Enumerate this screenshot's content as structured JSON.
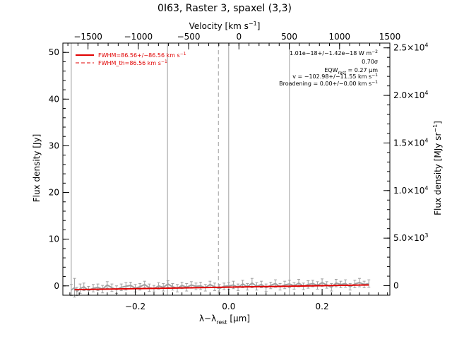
{
  "chart_data": {
    "type": "line",
    "title": "0I63, Raster 3, spaxel (3,3)",
    "xlabel": "λ−λ",
    "xlabel_sub": "rest",
    "xlabel_unit": " [μm]",
    "ylabel": "Flux density [Jy]",
    "top_xlabel_prefix": "Velocity [km s",
    "top_xlabel_sup": "−1",
    "top_xlabel_suffix": "]",
    "right_ylabel_prefix": "Flux density [MJy sr",
    "right_ylabel_sup": "−1",
    "right_ylabel_suffix": "]",
    "xlim": [
      -0.355,
      0.345
    ],
    "ylim": [
      -2,
      52
    ],
    "top_xlim": [
      -1750,
      1500
    ],
    "right_ylim": [
      -1000,
      25500
    ],
    "xticks": [
      {
        "value": -0.2,
        "label": "−0.2"
      },
      {
        "value": 0.0,
        "label": "0.0"
      },
      {
        "value": 0.2,
        "label": "0.2"
      }
    ],
    "yticks": [
      {
        "value": 0,
        "label": "0"
      },
      {
        "value": 10,
        "label": "10"
      },
      {
        "value": 20,
        "label": "20"
      },
      {
        "value": 30,
        "label": "30"
      },
      {
        "value": 40,
        "label": "40"
      },
      {
        "value": 50,
        "label": "50"
      }
    ],
    "top_xticks": [
      {
        "value": -1500,
        "label": "−1500"
      },
      {
        "value": -1000,
        "label": "−1000"
      },
      {
        "value": -500,
        "label": "−500"
      },
      {
        "value": 0,
        "label": "0"
      },
      {
        "value": 500,
        "label": "500"
      },
      {
        "value": 1000,
        "label": "1000"
      },
      {
        "value": 1500,
        "label": "1500"
      }
    ],
    "right_yticks": [
      {
        "value": 0,
        "mant": "0",
        "exp": ""
      },
      {
        "value": 5000,
        "mant": "5.0×10",
        "exp": "3"
      },
      {
        "value": 10000,
        "mant": "1.0×10",
        "exp": "4"
      },
      {
        "value": 15000,
        "mant": "1.5×10",
        "exp": "4"
      },
      {
        "value": 20000,
        "mant": "2.0×10",
        "exp": "4"
      },
      {
        "value": 25000,
        "mant": "2.5×10",
        "exp": "4"
      }
    ],
    "vertical_lines": [
      {
        "x": -0.337,
        "style": "solid"
      },
      {
        "x": -0.131,
        "style": "solid"
      },
      {
        "x": -0.022,
        "style": "dashed"
      },
      {
        "x": 0.0,
        "style": "solid"
      },
      {
        "x": 0.13,
        "style": "solid"
      }
    ],
    "series": [
      {
        "role": "data",
        "color": "#a0a0a0",
        "x": [
          -0.337,
          -0.33,
          -0.325,
          -0.318,
          -0.31,
          -0.3,
          -0.29,
          -0.28,
          -0.27,
          -0.26,
          -0.25,
          -0.24,
          -0.23,
          -0.22,
          -0.21,
          -0.2,
          -0.19,
          -0.18,
          -0.17,
          -0.16,
          -0.15,
          -0.14,
          -0.13,
          -0.12,
          -0.11,
          -0.1,
          -0.09,
          -0.08,
          -0.07,
          -0.06,
          -0.05,
          -0.04,
          -0.03,
          -0.02,
          -0.01,
          0.0,
          0.01,
          0.02,
          0.03,
          0.04,
          0.05,
          0.06,
          0.07,
          0.08,
          0.09,
          0.1,
          0.11,
          0.12,
          0.13,
          0.14,
          0.15,
          0.16,
          0.17,
          0.18,
          0.19,
          0.2,
          0.21,
          0.22,
          0.23,
          0.24,
          0.25,
          0.26,
          0.27,
          0.28,
          0.29,
          0.3
        ],
        "y": [
          -0.9,
          -0.4,
          -1.2,
          -0.6,
          -0.2,
          -1.0,
          -0.5,
          -0.3,
          -0.7,
          0.2,
          -0.4,
          -0.8,
          -0.3,
          -0.1,
          0.1,
          -0.5,
          -0.2,
          0.3,
          -0.4,
          -0.6,
          0.0,
          -0.3,
          0.4,
          -0.2,
          -0.5,
          0.1,
          -0.3,
          0.2,
          -0.1,
          0.0,
          -0.4,
          0.3,
          -0.2,
          -0.6,
          -0.1,
          0.0,
          0.2,
          -0.3,
          0.4,
          -0.2,
          0.6,
          -0.1,
          0.3,
          -0.4,
          0.1,
          0.5,
          -0.2,
          0.2,
          0.4,
          0.0,
          0.6,
          -0.1,
          0.3,
          0.5,
          0.1,
          0.7,
          0.2,
          -0.3,
          0.6,
          0.3,
          0.5,
          -0.2,
          0.4,
          0.7,
          0.3,
          0.5
        ],
        "err": [
          1.2,
          2.0,
          0.9,
          1.0,
          0.8,
          0.9,
          0.8,
          0.7,
          0.8,
          0.7,
          0.8,
          0.8,
          0.7,
          0.8,
          0.7,
          0.8,
          0.7,
          0.7,
          0.8,
          0.7,
          0.7,
          0.8,
          0.7,
          0.7,
          0.8,
          0.7,
          0.8,
          0.7,
          0.7,
          0.8,
          0.7,
          0.7,
          0.8,
          0.9,
          0.7,
          0.7,
          0.8,
          0.7,
          0.8,
          0.7,
          1.0,
          0.8,
          0.7,
          0.8,
          0.7,
          0.8,
          0.7,
          0.8,
          0.8,
          0.7,
          0.8,
          0.7,
          0.8,
          0.7,
          0.8,
          0.8,
          0.7,
          0.8,
          0.8,
          0.7,
          0.8,
          0.7,
          0.8,
          0.9,
          0.7,
          0.8
        ]
      },
      {
        "role": "fit",
        "color": "#e00000",
        "x": [
          -0.33,
          0.3
        ],
        "y": [
          -0.8,
          0.2
        ]
      }
    ],
    "legend": [
      {
        "text": "FWHM=86.56+/−86.56 km s",
        "sup": "−1",
        "style": "solid"
      },
      {
        "text": "FWHM_th=86.56 km s",
        "sup": "−1",
        "style": "dashed"
      }
    ],
    "annotations": [
      {
        "text": "1.01e−18+/−1.42e−18 W m",
        "sup": "−2",
        "sub": ""
      },
      {
        "text": "0.70σ",
        "sup": "",
        "sub": ""
      },
      {
        "text": "EQW",
        "sub": "rest",
        "after": " = 0.27 μm",
        "sup": ""
      },
      {
        "text": "v = −102.98+/−11.55 km s",
        "sup": "−1",
        "sub": ""
      },
      {
        "text": "Broadening = 0.00+/−0.00 km s",
        "sup": "−1",
        "sub": ""
      }
    ]
  }
}
